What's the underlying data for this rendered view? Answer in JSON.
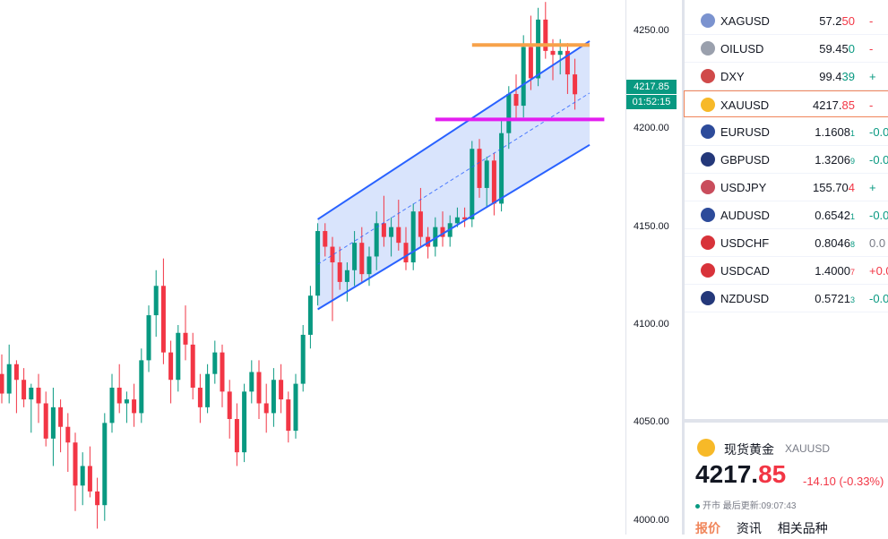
{
  "chart_data": {
    "type": "candlestick",
    "symbol": "XAUUSD",
    "ylim": [
      3993,
      4266
    ],
    "y_ticks": [
      "4250.00",
      "4200.00",
      "4150.00",
      "4100.00",
      "4050.00",
      "4000.00"
    ],
    "last_price": "4217.85",
    "countdown": "01:52:15",
    "candles": [
      [
        4075,
        4085,
        4060,
        4065
      ],
      [
        4065,
        4090,
        4060,
        4080
      ],
      [
        4080,
        4082,
        4055,
        4072
      ],
      [
        4072,
        4078,
        4058,
        4062
      ],
      [
        4062,
        4070,
        4045,
        4068
      ],
      [
        4068,
        4075,
        4050,
        4060
      ],
      [
        4060,
        4066,
        4038,
        4042
      ],
      [
        4042,
        4068,
        4028,
        4058
      ],
      [
        4058,
        4062,
        4035,
        4048
      ],
      [
        4048,
        4055,
        4025,
        4040
      ],
      [
        4040,
        4045,
        4005,
        4018
      ],
      [
        4018,
        4035,
        4008,
        4028
      ],
      [
        4028,
        4038,
        4012,
        4015
      ],
      [
        4015,
        4022,
        3996,
        4008
      ],
      [
        4008,
        4055,
        4000,
        4050
      ],
      [
        4050,
        4075,
        4045,
        4068
      ],
      [
        4068,
        4080,
        4055,
        4060
      ],
      [
        4060,
        4066,
        4050,
        4062
      ],
      [
        4062,
        4070,
        4048,
        4055
      ],
      [
        4055,
        4088,
        4050,
        4082
      ],
      [
        4082,
        4110,
        4076,
        4105
      ],
      [
        4105,
        4128,
        4094,
        4120
      ],
      [
        4120,
        4134,
        4080,
        4086
      ],
      [
        4086,
        4092,
        4060,
        4072
      ],
      [
        4072,
        4100,
        4066,
        4096
      ],
      [
        4096,
        4110,
        4082,
        4090
      ],
      [
        4090,
        4096,
        4062,
        4068
      ],
      [
        4068,
        4075,
        4050,
        4058
      ],
      [
        4058,
        4080,
        4055,
        4075
      ],
      [
        4075,
        4092,
        4070,
        4086
      ],
      [
        4086,
        4090,
        4058,
        4066
      ],
      [
        4066,
        4072,
        4042,
        4052
      ],
      [
        4052,
        4060,
        4028,
        4035
      ],
      [
        4035,
        4070,
        4030,
        4066
      ],
      [
        4066,
        4082,
        4060,
        4076
      ],
      [
        4076,
        4082,
        4052,
        4060
      ],
      [
        4060,
        4070,
        4045,
        4055
      ],
      [
        4055,
        4078,
        4048,
        4072
      ],
      [
        4072,
        4080,
        4055,
        4062
      ],
      [
        4062,
        4066,
        4040,
        4046
      ],
      [
        4046,
        4075,
        4042,
        4070
      ],
      [
        4070,
        4100,
        4066,
        4095
      ],
      [
        4095,
        4120,
        4088,
        4115
      ],
      [
        4115,
        4152,
        4110,
        4148
      ],
      [
        4148,
        4152,
        4135,
        4140
      ],
      [
        4140,
        4145,
        4102,
        4132
      ],
      [
        4132,
        4140,
        4118,
        4122
      ],
      [
        4122,
        4132,
        4112,
        4128
      ],
      [
        4128,
        4148,
        4120,
        4142
      ],
      [
        4142,
        4150,
        4122,
        4126
      ],
      [
        4126,
        4140,
        4120,
        4135
      ],
      [
        4135,
        4158,
        4128,
        4152
      ],
      [
        4152,
        4166,
        4140,
        4145
      ],
      [
        4145,
        4155,
        4135,
        4150
      ],
      [
        4150,
        4164,
        4138,
        4142
      ],
      [
        4142,
        4150,
        4128,
        4132
      ],
      [
        4132,
        4162,
        4128,
        4158
      ],
      [
        4158,
        4170,
        4140,
        4145
      ],
      [
        4145,
        4150,
        4134,
        4140
      ],
      [
        4140,
        4155,
        4135,
        4150
      ],
      [
        4150,
        4158,
        4140,
        4145
      ],
      [
        4145,
        4156,
        4140,
        4152
      ],
      [
        4152,
        4160,
        4150,
        4155
      ],
      [
        4155,
        4160,
        4150,
        4154
      ],
      [
        4154,
        4194,
        4150,
        4190
      ],
      [
        4190,
        4195,
        4165,
        4170
      ],
      [
        4170,
        4186,
        4160,
        4184
      ],
      [
        4184,
        4188,
        4156,
        4162
      ],
      [
        4162,
        4205,
        4158,
        4198
      ],
      [
        4198,
        4222,
        4190,
        4218
      ],
      [
        4218,
        4228,
        4205,
        4212
      ],
      [
        4212,
        4248,
        4206,
        4242
      ],
      [
        4242,
        4258,
        4220,
        4226
      ],
      [
        4226,
        4262,
        4222,
        4256
      ],
      [
        4256,
        4265,
        4236,
        4240
      ],
      [
        4240,
        4246,
        4225,
        4238
      ],
      [
        4238,
        4246,
        4228,
        4240
      ],
      [
        4240,
        4244,
        4218,
        4228
      ],
      [
        4228,
        4236,
        4210,
        4217.85
      ]
    ],
    "channel": {
      "upper": [
        [
          43,
          4154
        ],
        [
          80,
          4245
        ]
      ],
      "lower": [
        [
          43,
          4108
        ],
        [
          80,
          4192
        ]
      ]
    },
    "levels": [
      {
        "price": 4243,
        "x_from": 64,
        "x_to": 80,
        "color": "#f7a24a"
      },
      {
        "price": 4205,
        "x_from": 59,
        "x_to": 82,
        "color": "#e31ef0"
      }
    ],
    "colors": {
      "up": "#089981",
      "down": "#f23645",
      "channel_line": "#2962ff",
      "channel_fill": "#c9d8fb"
    }
  },
  "watchlist": [
    {
      "symbol": "XAGUSD",
      "icon": "silver-icon",
      "icon_color": "#7b93cf",
      "last_main": "57.2",
      "last_hi": "50",
      "last_small": "",
      "change": "-",
      "dir": "dn"
    },
    {
      "symbol": "OILUSD",
      "icon": "oil-icon",
      "icon_color": "#9aa0ad",
      "last_main": "59.45",
      "last_hi": "0",
      "last_small": "",
      "change": "-",
      "dir": "dn",
      "hi_dir": "up"
    },
    {
      "symbol": "DXY",
      "icon": "usd-flag-icon",
      "icon_color": "#d04a4a",
      "last_main": "99.4",
      "last_hi": "39",
      "last_small": "",
      "change": "+",
      "dir": "up",
      "hi_dir": "up"
    },
    {
      "symbol": "XAUUSD",
      "icon": "gold-icon",
      "icon_color": "#f7b928",
      "last_main": "4217.",
      "last_hi": "85",
      "last_small": "",
      "change": "-",
      "dir": "dn"
    },
    {
      "symbol": "EURUSD",
      "icon": "eu-flag-icon",
      "icon_color": "#2d4b9a",
      "last_main": "1.1608",
      "last_hi": "",
      "last_small": "1",
      "change": "-0.0",
      "dir": "up"
    },
    {
      "symbol": "GBPUSD",
      "icon": "uk-flag-icon",
      "icon_color": "#24387a",
      "last_main": "1.3206",
      "last_hi": "",
      "last_small": "9",
      "change": "-0.0",
      "dir": "up"
    },
    {
      "symbol": "USDJPY",
      "icon": "jp-flag-icon",
      "icon_color": "#c94d5c",
      "last_main": "155.70",
      "last_hi": "4",
      "last_small": "",
      "change": "+",
      "dir": "up",
      "hi_dir": "dn"
    },
    {
      "symbol": "AUDUSD",
      "icon": "au-flag-icon",
      "icon_color": "#2d4b9a",
      "last_main": "0.6542",
      "last_hi": "",
      "last_small": "1",
      "change": "-0.0",
      "dir": "up"
    },
    {
      "symbol": "USDCHF",
      "icon": "ch-flag-icon",
      "icon_color": "#d8333a",
      "last_main": "0.8046",
      "last_hi": "",
      "last_small": "8",
      "change": "0.0",
      "dir": "neu"
    },
    {
      "symbol": "USDCAD",
      "icon": "ca-flag-icon",
      "icon_color": "#d8333a",
      "last_main": "1.4000",
      "last_hi": "",
      "last_small": "7",
      "change": "+0.0",
      "dir": "dn"
    },
    {
      "symbol": "NZDUSD",
      "icon": "nz-flag-icon",
      "icon_color": "#24387a",
      "last_main": "0.5721",
      "last_hi": "",
      "last_small": "3",
      "change": "-0.0",
      "dir": "up"
    }
  ],
  "detail": {
    "name": "现货黄金",
    "symbol": "XAUUSD",
    "price_main": "4217.",
    "price_frac": "85",
    "change": "-14.10 (-0.33%)",
    "status": "开市 最后更新:09:07:43",
    "tabs": [
      "报价",
      "资讯",
      "相关品种"
    ]
  }
}
